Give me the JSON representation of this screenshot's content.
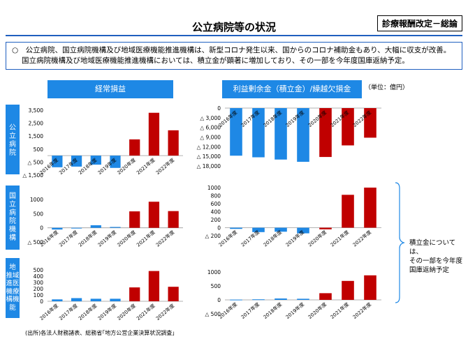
{
  "header": {
    "title": "公立病院等の状況",
    "tag": "診療報酬改定－総論"
  },
  "summary": {
    "line1": "○　公立病院、国立病院機構及び地域医療機能推進機構は、新型コロナ発生以来、国からのコロナ補助金もあり、大幅に収支が改善。",
    "line2": "国立病院機構及び地域医療機能推進機構においては、積立金が顕著に増加しており、その一部を今年度国庫返納予定。"
  },
  "columns": {
    "left_header": "経常損益",
    "right_header": "利益剰余金（積立金）/繰越欠損金",
    "unit": "（単位：億円）"
  },
  "rows": {
    "r1": [
      "公",
      "立",
      "病",
      "院"
    ],
    "r2": [
      "国",
      "立",
      "病",
      "院",
      "機",
      "構"
    ],
    "r3": [
      "地",
      "推域",
      "進医",
      "機療",
      "構機",
      "能"
    ]
  },
  "note": [
    "積立金については、",
    "その一部を今年度",
    "国庫返納予定"
  ],
  "source": "(出所)各法人財務諸表、総務省｢地方公営企業決算状況調査｣",
  "colors": {
    "blue": "#1e88e5",
    "red": "#c00000",
    "header": "#1e88e5"
  },
  "chart_data": [
    {
      "type": "bar",
      "categories": [
        "2016年度",
        "2017年度",
        "2018年度",
        "2019年度",
        "2020年度",
        "2021年度",
        "2022年度"
      ],
      "values": [
        -900,
        -850,
        -700,
        -950,
        1250,
        3300,
        1950
      ],
      "yticks": [
        3500,
        2500,
        1500,
        500,
        -500,
        -1500
      ],
      "yticklabels": [
        "3,500",
        "2,500",
        "1,500",
        "500",
        "△ 500",
        "△ 1,500"
      ],
      "ylim": [
        -1500,
        3500
      ],
      "title": "",
      "xlabel": "",
      "ylabel": ""
    },
    {
      "type": "bar",
      "categories": [
        "2016年度",
        "2017年度",
        "2018年度",
        "2019年度",
        "2020年度",
        "2021年度",
        "2022年度"
      ],
      "values": [
        -14800,
        -15300,
        -16000,
        -16700,
        -15200,
        -11600,
        -9200
      ],
      "yticks": [
        0,
        -3000,
        -6000,
        -9000,
        -12000,
        -15000,
        -18000
      ],
      "yticklabels": [
        "0",
        "△ 3,000",
        "△ 6,000",
        "△ 9,000",
        "△ 12,000",
        "△ 15,000",
        "△ 18,000"
      ],
      "ylim": [
        -18000,
        0
      ],
      "title": "",
      "xlabel": "",
      "ylabel": ""
    },
    {
      "type": "bar",
      "categories": [
        "2016年度",
        "2017年度",
        "2018年度",
        "2019年度",
        "2020年度",
        "2021年度",
        "2022年度"
      ],
      "values": [
        -60,
        -20,
        90,
        30,
        580,
        920,
        590
      ],
      "yticks": [
        1000,
        500,
        0,
        -500
      ],
      "yticklabels": [
        "1000",
        "500",
        "0",
        "△ 500"
      ],
      "ylim": [
        -500,
        1000
      ],
      "title": "",
      "xlabel": "",
      "ylabel": ""
    },
    {
      "type": "bar",
      "categories": [
        "2016年度",
        "2017年度",
        "2018年度",
        "2019年度",
        "2020年度",
        "2021年度",
        "2022年度"
      ],
      "values": [
        -30,
        -110,
        -100,
        -140,
        -40,
        820,
        1000
      ],
      "yticks": [
        1000,
        800,
        600,
        400,
        200,
        0,
        -200
      ],
      "yticklabels": [
        "1000",
        "800",
        "600",
        "400",
        "200",
        "0",
        "△ 200"
      ],
      "ylim": [
        -200,
        1000
      ],
      "title": "",
      "xlabel": "",
      "ylabel": ""
    },
    {
      "type": "bar",
      "categories": [
        "2016年度",
        "2017年度",
        "2018年度",
        "2019年度",
        "2020年度",
        "2021年度",
        "2022年度"
      ],
      "values": [
        30,
        50,
        40,
        40,
        220,
        480,
        230
      ],
      "yticks": [
        500,
        400,
        300,
        200,
        100,
        0
      ],
      "yticklabels": [
        "500",
        "400",
        "300",
        "200",
        "100",
        "0"
      ],
      "ylim": [
        0,
        520
      ],
      "title": "",
      "xlabel": "",
      "ylabel": ""
    },
    {
      "type": "bar",
      "categories": [
        "2016年度",
        "2017年度",
        "2018年度",
        "2019年度",
        "2020年度",
        "2021年度",
        "2022年度"
      ],
      "values": [
        10,
        20,
        50,
        40,
        240,
        680,
        880
      ],
      "yticks": [
        1000,
        500,
        0,
        -500
      ],
      "yticklabels": [
        "1000",
        "500",
        "0",
        "△ 500"
      ],
      "ylim": [
        -500,
        1000
      ],
      "title": "",
      "xlabel": "",
      "ylabel": ""
    }
  ]
}
